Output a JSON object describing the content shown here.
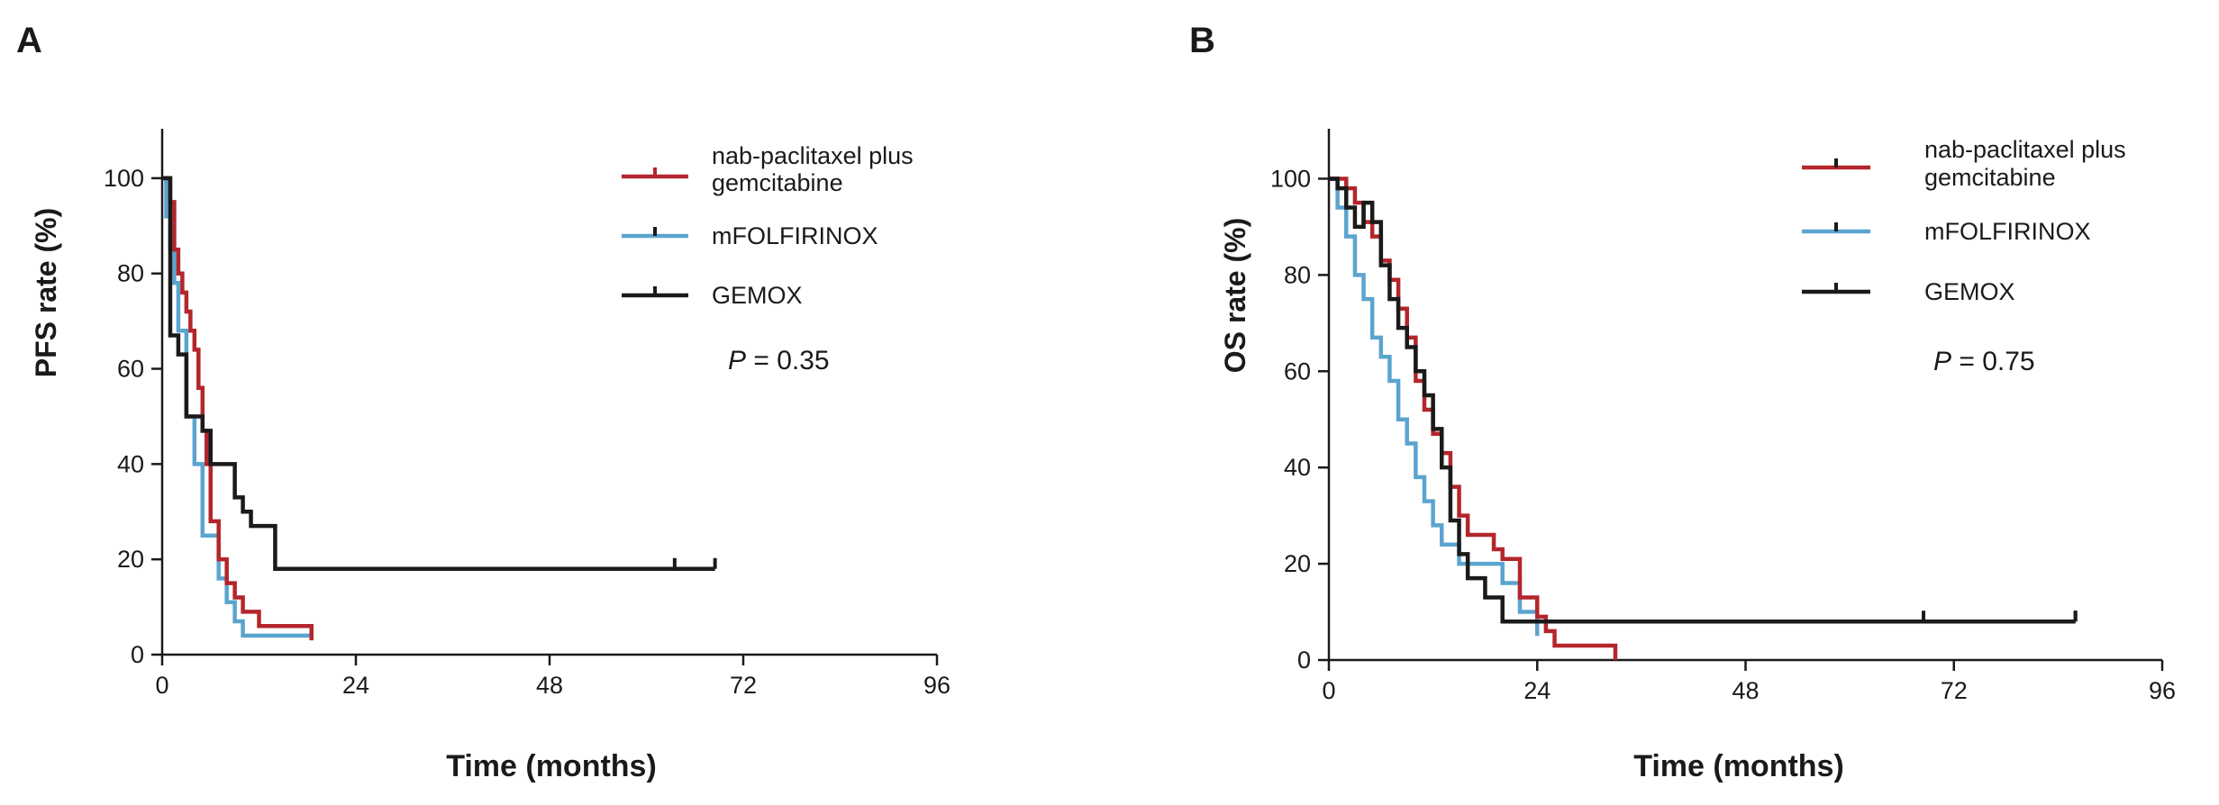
{
  "chart_data": [
    {
      "panel": "A",
      "type": "line",
      "subtype": "kaplan-meier step",
      "ylabel": "PFS rate (%)",
      "xlabel": "Time (months)",
      "xlim": [
        0,
        96
      ],
      "ylim": [
        0,
        110
      ],
      "xticks": [
        0,
        24,
        48,
        72,
        96
      ],
      "yticks": [
        0,
        20,
        40,
        60,
        80,
        100
      ],
      "grid": false,
      "legend_position": "top-right",
      "p_label": "P",
      "p_value": "= 0.35",
      "series": [
        {
          "name": "nab-paclitaxel plus gemcitabine",
          "legend_lines": [
            "nab-paclitaxel plus",
            "gemcitabine"
          ],
          "color": "#b3262b",
          "x": [
            0,
            1,
            1.5,
            2,
            2.5,
            3,
            3.5,
            4,
            4.5,
            5,
            5.5,
            6,
            7,
            8,
            9,
            10,
            12,
            18.5
          ],
          "y": [
            100,
            95,
            85,
            80,
            76,
            72,
            68,
            64,
            56,
            47,
            40,
            28,
            20,
            15,
            12,
            9,
            6,
            3
          ],
          "censored": [],
          "end": 18.5
        },
        {
          "name": "mFOLFIRINOX",
          "legend_lines": [
            "mFOLFIRINOX"
          ],
          "color": "#5ba4cf",
          "x": [
            0,
            0.5,
            1,
            1.5,
            2,
            3,
            4,
            5,
            6,
            7,
            8,
            9,
            10
          ],
          "y": [
            100,
            92,
            85,
            78,
            68,
            50,
            40,
            25,
            25,
            16,
            11,
            7,
            4
          ],
          "censored": [],
          "end": 18.5
        },
        {
          "name": "GEMOX",
          "legend_lines": [
            "GEMOX"
          ],
          "color": "#1a1a1a",
          "x": [
            0,
            1,
            2,
            3,
            5,
            6,
            8,
            9,
            10,
            11,
            14
          ],
          "y": [
            100,
            67,
            63,
            50,
            47,
            40,
            40,
            33,
            30,
            27,
            18
          ],
          "censored": [
            63.5
          ],
          "end": 68.5
        }
      ]
    },
    {
      "panel": "B",
      "type": "line",
      "subtype": "kaplan-meier step",
      "ylabel": "OS rate (%)",
      "xlabel": "Time (months)",
      "xlim": [
        0,
        96
      ],
      "ylim": [
        0,
        110
      ],
      "xticks": [
        0,
        24,
        48,
        72,
        96
      ],
      "yticks": [
        0,
        20,
        40,
        60,
        80,
        100
      ],
      "grid": false,
      "legend_position": "top-right",
      "p_label": "P",
      "p_value": "= 0.75",
      "series": [
        {
          "name": "nab-paclitaxel plus gemcitabine",
          "legend_lines": [
            "nab-paclitaxel plus",
            "gemcitabine"
          ],
          "color": "#b3262b",
          "x": [
            0,
            2,
            3,
            4,
            5,
            6,
            7,
            8,
            9,
            10,
            11,
            12,
            13,
            14,
            15,
            16,
            19,
            20,
            22,
            24,
            25,
            26,
            33
          ],
          "y": [
            100,
            98,
            95,
            91,
            88,
            83,
            79,
            73,
            67,
            58,
            52,
            47,
            43,
            36,
            30,
            26,
            23,
            21,
            13,
            9,
            6,
            3,
            0
          ],
          "censored": [],
          "end": 33
        },
        {
          "name": "mFOLFIRINOX",
          "legend_lines": [
            "mFOLFIRINOX"
          ],
          "color": "#5ba4cf",
          "x": [
            0,
            1,
            2,
            3,
            4,
            5,
            6,
            7,
            8,
            9,
            10,
            11,
            12,
            13,
            15,
            18,
            20,
            22,
            24
          ],
          "y": [
            100,
            94,
            88,
            80,
            75,
            67,
            63,
            58,
            50,
            45,
            38,
            33,
            28,
            24,
            20,
            20,
            16,
            10,
            5
          ],
          "censored": [],
          "end": 24
        },
        {
          "name": "GEMOX",
          "legend_lines": [
            "GEMOX"
          ],
          "color": "#1a1a1a",
          "x": [
            0,
            1,
            2,
            3,
            4,
            5,
            6,
            7,
            8,
            9,
            10,
            11,
            12,
            13,
            14,
            15,
            16,
            18,
            20,
            24
          ],
          "y": [
            100,
            98,
            94,
            90,
            95,
            91,
            82,
            75,
            69,
            65,
            60,
            55,
            48,
            40,
            29,
            22,
            17,
            13,
            8,
            8
          ],
          "censored": [
            68.5,
            86
          ],
          "end": 86
        }
      ]
    }
  ]
}
